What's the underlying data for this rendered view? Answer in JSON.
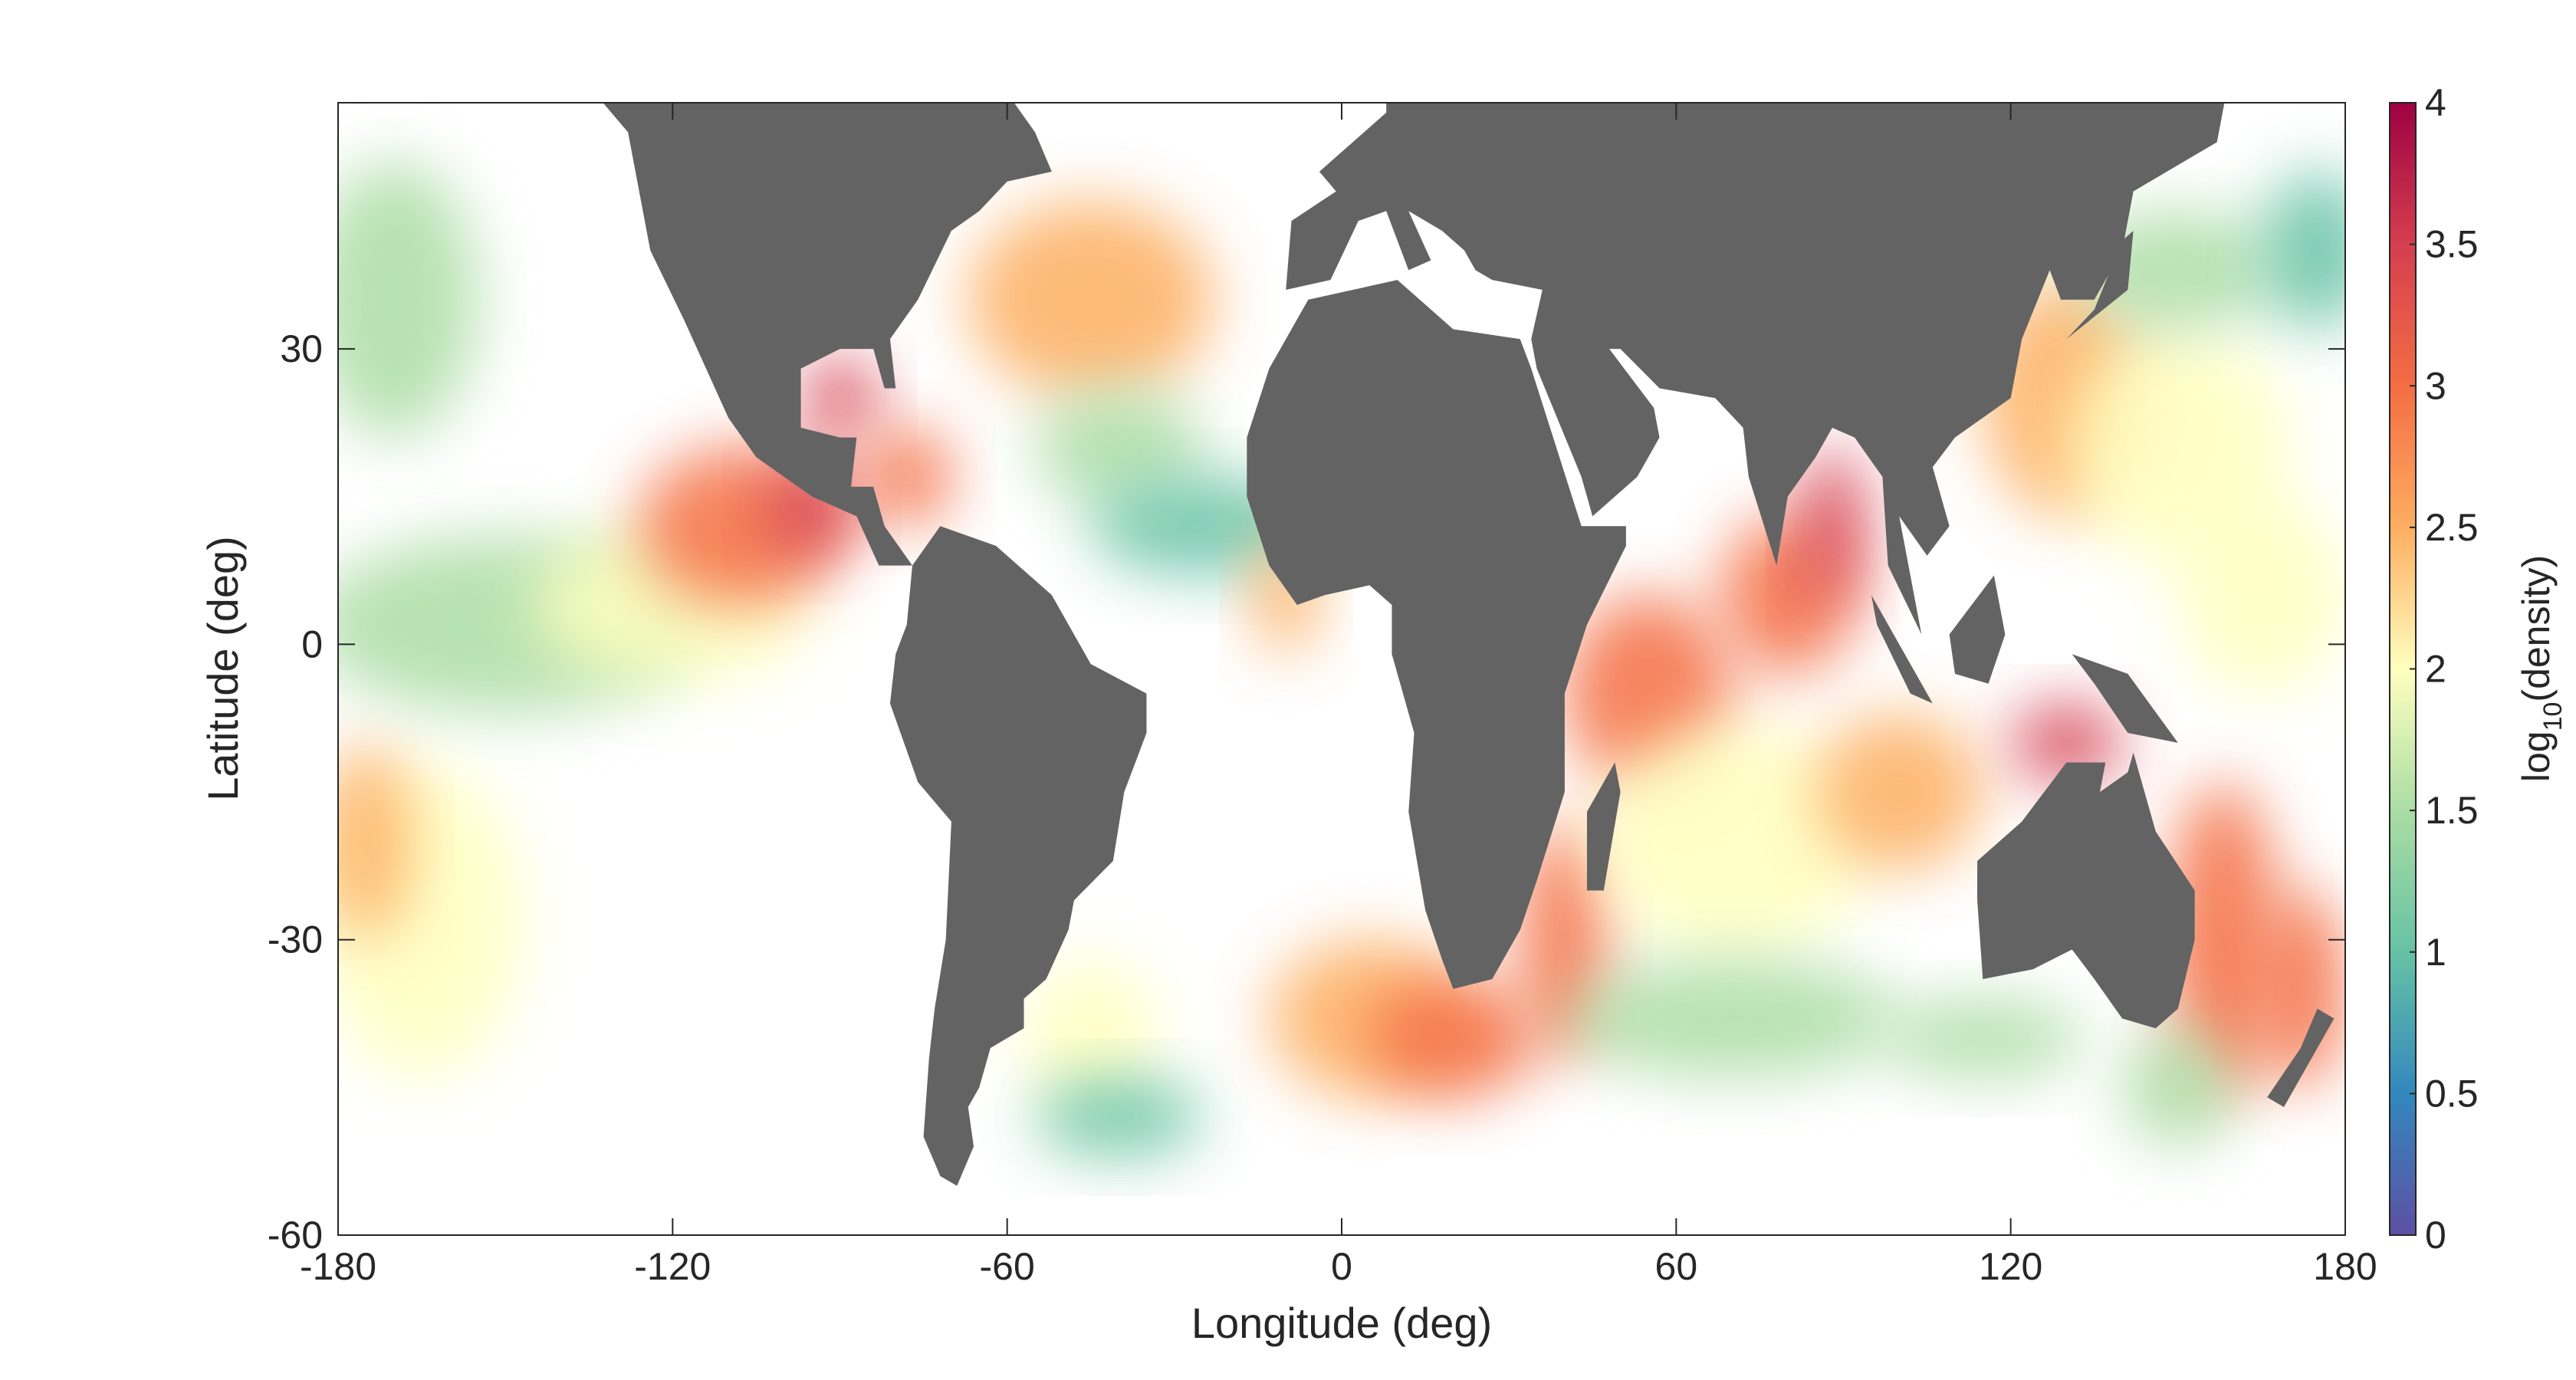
{
  "chart_data": {
    "type": "map",
    "x_label": "Longitude (deg)",
    "y_label": "Latitude (deg)",
    "xlim": [
      -180,
      180
    ],
    "xticks": [
      -180,
      -120,
      -60,
      0,
      60,
      120,
      180
    ],
    "ylim": [
      -60,
      55
    ],
    "yticks": [
      -60,
      -30,
      0,
      30
    ],
    "clim": [
      0,
      4
    ],
    "cticks": [
      0,
      0.5,
      1,
      1.5,
      2,
      2.5,
      3,
      3.5,
      4
    ],
    "colorbar_label": [
      "log",
      "10",
      "(density)"
    ],
    "colormap": [
      "#5e4fa2",
      "#3288bd",
      "#66c2a5",
      "#abdda4",
      "#ffffbf",
      "#fdae61",
      "#f46d43",
      "#d53e4f",
      "#9e0142"
    ],
    "land_color": "#636363"
  }
}
